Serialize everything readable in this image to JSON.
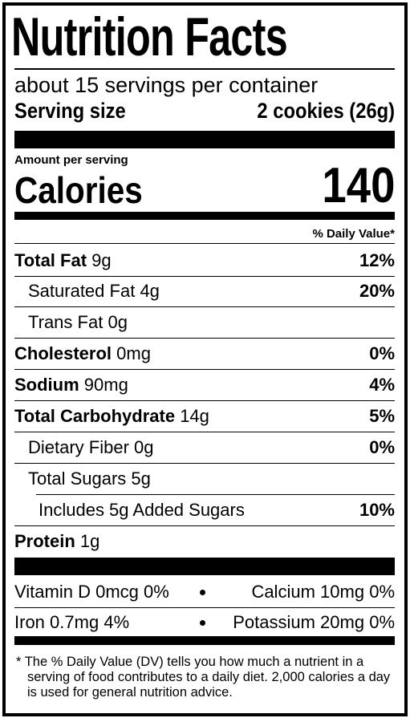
{
  "header": {
    "title": "Nutrition Facts",
    "servings": "about 15 servings per container",
    "serving_size_label": "Serving size",
    "serving_size": "2 cookies (26g)"
  },
  "calories": {
    "amount_label": "Amount per serving",
    "label": "Calories",
    "value": 140
  },
  "daily_value_header": "% Daily Value*",
  "nutrients": [
    {
      "name": "Total Fat",
      "amount": "9g",
      "dv": "12%"
    },
    {
      "name": "Saturated Fat",
      "amount": "4g",
      "dv": "20%"
    },
    {
      "name": "Trans Fat",
      "amount": "0g"
    },
    {
      "name": "Cholesterol",
      "amount": "0mg",
      "dv": "0%"
    },
    {
      "name": "Sodium",
      "amount": "90mg",
      "dv": "4%"
    },
    {
      "name": "Total Carbohydrate",
      "amount": "14g",
      "dv": "5%"
    },
    {
      "name": "Dietary Fiber",
      "amount": "0g",
      "dv": "0%"
    },
    {
      "name": "Total Sugars",
      "amount": "5g"
    },
    {
      "name": "Includes 5g Added Sugars",
      "dv": "10%"
    },
    {
      "name": "Protein",
      "amount": "1g"
    }
  ],
  "vitamins": [
    {
      "name": "Vitamin D",
      "amount": "0mcg",
      "dv": "0%"
    },
    {
      "name": "Calcium",
      "amount": "10mg",
      "dv": "0%"
    },
    {
      "name": "Iron",
      "amount": "0.7mg",
      "dv": "4%"
    },
    {
      "name": "Potassium",
      "amount": "20mg",
      "dv": "0%"
    }
  ],
  "footnote": "* The % Daily Value (DV) tells you how much a nutrient in a serving of food contributes to a daily diet. 2,000 calories a day is used for general nutrition advice."
}
